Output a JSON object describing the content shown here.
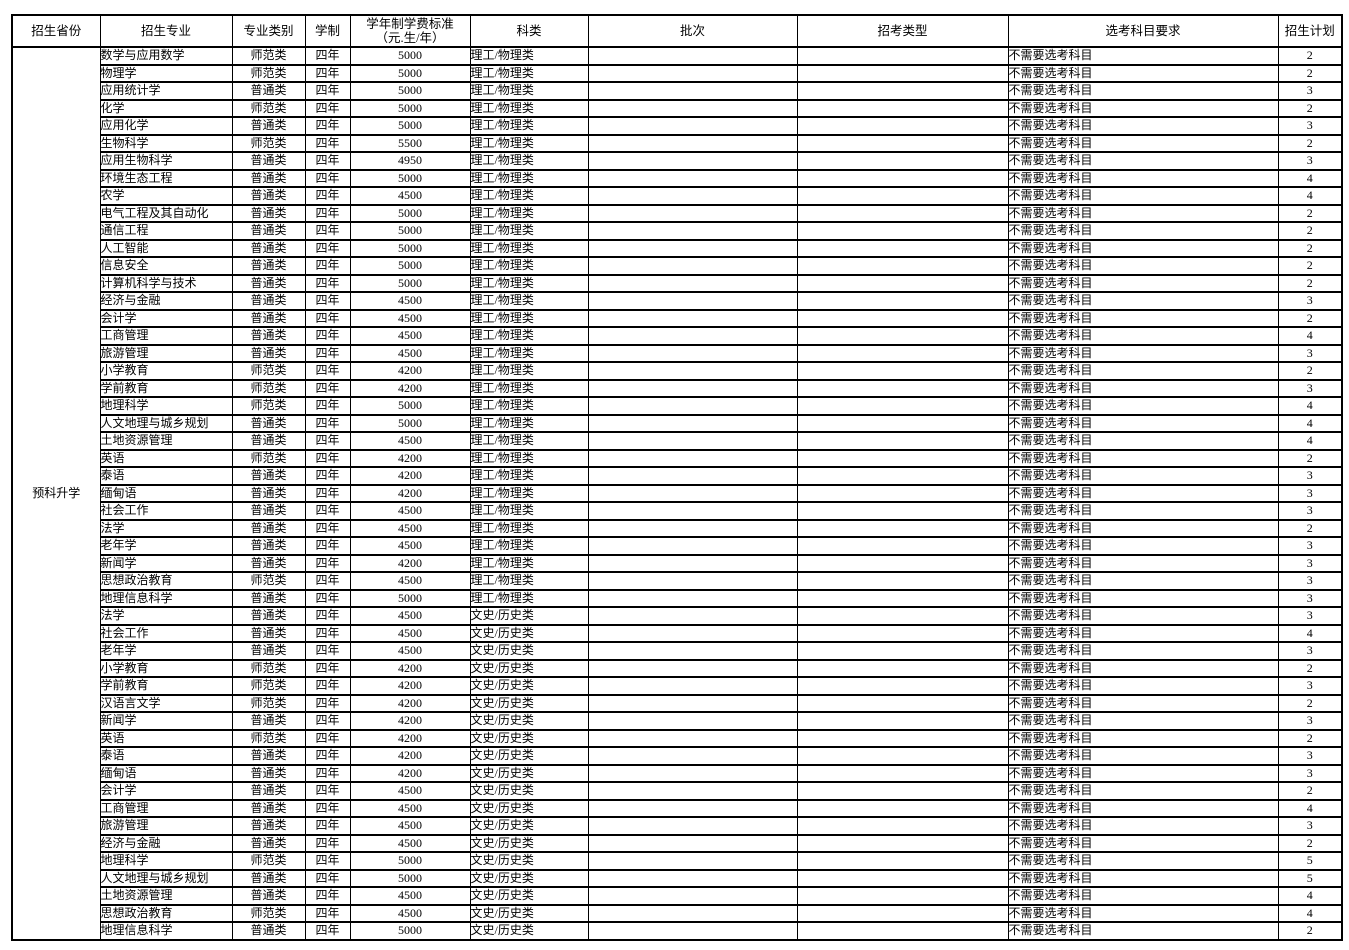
{
  "table": {
    "province_label": "预科升学",
    "headers": [
      "招生省份",
      "招生专业",
      "专业类别",
      "学制",
      "学年制学费标准\n（元.生/年）",
      "科类",
      "批次",
      "招考类型",
      "选考科目要求",
      "招生计划"
    ],
    "rows": [
      {
        "major": "数学与应用数学",
        "category": "师范类",
        "duration": "四年",
        "tuition": "5000",
        "subject": "理工/物理类",
        "batch": "",
        "exam_type": "",
        "subject_req": "不需要选考科目",
        "plan": "2"
      },
      {
        "major": "物理学",
        "category": "师范类",
        "duration": "四年",
        "tuition": "5000",
        "subject": "理工/物理类",
        "batch": "",
        "exam_type": "",
        "subject_req": "不需要选考科目",
        "plan": "2"
      },
      {
        "major": "应用统计学",
        "category": "普通类",
        "duration": "四年",
        "tuition": "5000",
        "subject": "理工/物理类",
        "batch": "",
        "exam_type": "",
        "subject_req": "不需要选考科目",
        "plan": "3"
      },
      {
        "major": "化学",
        "category": "师范类",
        "duration": "四年",
        "tuition": "5000",
        "subject": "理工/物理类",
        "batch": "",
        "exam_type": "",
        "subject_req": "不需要选考科目",
        "plan": "2"
      },
      {
        "major": "应用化学",
        "category": "普通类",
        "duration": "四年",
        "tuition": "5000",
        "subject": "理工/物理类",
        "batch": "",
        "exam_type": "",
        "subject_req": "不需要选考科目",
        "plan": "3"
      },
      {
        "major": "生物科学",
        "category": "师范类",
        "duration": "四年",
        "tuition": "5500",
        "subject": "理工/物理类",
        "batch": "",
        "exam_type": "",
        "subject_req": "不需要选考科目",
        "plan": "2"
      },
      {
        "major": "应用生物科学",
        "category": "普通类",
        "duration": "四年",
        "tuition": "4950",
        "subject": "理工/物理类",
        "batch": "",
        "exam_type": "",
        "subject_req": "不需要选考科目",
        "plan": "3"
      },
      {
        "major": "环境生态工程",
        "category": "普通类",
        "duration": "四年",
        "tuition": "5000",
        "subject": "理工/物理类",
        "batch": "",
        "exam_type": "",
        "subject_req": "不需要选考科目",
        "plan": "4"
      },
      {
        "major": "农学",
        "category": "普通类",
        "duration": "四年",
        "tuition": "4500",
        "subject": "理工/物理类",
        "batch": "",
        "exam_type": "",
        "subject_req": "不需要选考科目",
        "plan": "4"
      },
      {
        "major": "电气工程及其自动化",
        "category": "普通类",
        "duration": "四年",
        "tuition": "5000",
        "subject": "理工/物理类",
        "batch": "",
        "exam_type": "",
        "subject_req": "不需要选考科目",
        "plan": "2"
      },
      {
        "major": "通信工程",
        "category": "普通类",
        "duration": "四年",
        "tuition": "5000",
        "subject": "理工/物理类",
        "batch": "",
        "exam_type": "",
        "subject_req": "不需要选考科目",
        "plan": "2"
      },
      {
        "major": "人工智能",
        "category": "普通类",
        "duration": "四年",
        "tuition": "5000",
        "subject": "理工/物理类",
        "batch": "",
        "exam_type": "",
        "subject_req": "不需要选考科目",
        "plan": "2"
      },
      {
        "major": "信息安全",
        "category": "普通类",
        "duration": "四年",
        "tuition": "5000",
        "subject": "理工/物理类",
        "batch": "",
        "exam_type": "",
        "subject_req": "不需要选考科目",
        "plan": "2"
      },
      {
        "major": "计算机科学与技术",
        "category": "普通类",
        "duration": "四年",
        "tuition": "5000",
        "subject": "理工/物理类",
        "batch": "",
        "exam_type": "",
        "subject_req": "不需要选考科目",
        "plan": "2"
      },
      {
        "major": "经济与金融",
        "category": "普通类",
        "duration": "四年",
        "tuition": "4500",
        "subject": "理工/物理类",
        "batch": "",
        "exam_type": "",
        "subject_req": "不需要选考科目",
        "plan": "3"
      },
      {
        "major": "会计学",
        "category": "普通类",
        "duration": "四年",
        "tuition": "4500",
        "subject": "理工/物理类",
        "batch": "",
        "exam_type": "",
        "subject_req": "不需要选考科目",
        "plan": "2"
      },
      {
        "major": "工商管理",
        "category": "普通类",
        "duration": "四年",
        "tuition": "4500",
        "subject": "理工/物理类",
        "batch": "",
        "exam_type": "",
        "subject_req": "不需要选考科目",
        "plan": "4"
      },
      {
        "major": "旅游管理",
        "category": "普通类",
        "duration": "四年",
        "tuition": "4500",
        "subject": "理工/物理类",
        "batch": "",
        "exam_type": "",
        "subject_req": "不需要选考科目",
        "plan": "3"
      },
      {
        "major": "小学教育",
        "category": "师范类",
        "duration": "四年",
        "tuition": "4200",
        "subject": "理工/物理类",
        "batch": "",
        "exam_type": "",
        "subject_req": "不需要选考科目",
        "plan": "2"
      },
      {
        "major": "学前教育",
        "category": "师范类",
        "duration": "四年",
        "tuition": "4200",
        "subject": "理工/物理类",
        "batch": "",
        "exam_type": "",
        "subject_req": "不需要选考科目",
        "plan": "3"
      },
      {
        "major": "地理科学",
        "category": "师范类",
        "duration": "四年",
        "tuition": "5000",
        "subject": "理工/物理类",
        "batch": "",
        "exam_type": "",
        "subject_req": "不需要选考科目",
        "plan": "4"
      },
      {
        "major": "人文地理与城乡规划",
        "category": "普通类",
        "duration": "四年",
        "tuition": "5000",
        "subject": "理工/物理类",
        "batch": "",
        "exam_type": "",
        "subject_req": "不需要选考科目",
        "plan": "4"
      },
      {
        "major": "土地资源管理",
        "category": "普通类",
        "duration": "四年",
        "tuition": "4500",
        "subject": "理工/物理类",
        "batch": "",
        "exam_type": "",
        "subject_req": "不需要选考科目",
        "plan": "4"
      },
      {
        "major": "英语",
        "category": "师范类",
        "duration": "四年",
        "tuition": "4200",
        "subject": "理工/物理类",
        "batch": "",
        "exam_type": "",
        "subject_req": "不需要选考科目",
        "plan": "2"
      },
      {
        "major": "泰语",
        "category": "普通类",
        "duration": "四年",
        "tuition": "4200",
        "subject": "理工/物理类",
        "batch": "",
        "exam_type": "",
        "subject_req": "不需要选考科目",
        "plan": "3"
      },
      {
        "major": "缅甸语",
        "category": "普通类",
        "duration": "四年",
        "tuition": "4200",
        "subject": "理工/物理类",
        "batch": "",
        "exam_type": "",
        "subject_req": "不需要选考科目",
        "plan": "3"
      },
      {
        "major": "社会工作",
        "category": "普通类",
        "duration": "四年",
        "tuition": "4500",
        "subject": "理工/物理类",
        "batch": "",
        "exam_type": "",
        "subject_req": "不需要选考科目",
        "plan": "3"
      },
      {
        "major": "法学",
        "category": "普通类",
        "duration": "四年",
        "tuition": "4500",
        "subject": "理工/物理类",
        "batch": "",
        "exam_type": "",
        "subject_req": "不需要选考科目",
        "plan": "2"
      },
      {
        "major": "老年学",
        "category": "普通类",
        "duration": "四年",
        "tuition": "4500",
        "subject": "理工/物理类",
        "batch": "",
        "exam_type": "",
        "subject_req": "不需要选考科目",
        "plan": "3"
      },
      {
        "major": "新闻学",
        "category": "普通类",
        "duration": "四年",
        "tuition": "4200",
        "subject": "理工/物理类",
        "batch": "",
        "exam_type": "",
        "subject_req": "不需要选考科目",
        "plan": "3"
      },
      {
        "major": "思想政治教育",
        "category": "师范类",
        "duration": "四年",
        "tuition": "4500",
        "subject": "理工/物理类",
        "batch": "",
        "exam_type": "",
        "subject_req": "不需要选考科目",
        "plan": "3"
      },
      {
        "major": "地理信息科学",
        "category": "普通类",
        "duration": "四年",
        "tuition": "5000",
        "subject": "理工/物理类",
        "batch": "",
        "exam_type": "",
        "subject_req": "不需要选考科目",
        "plan": "3"
      },
      {
        "major": "法学",
        "category": "普通类",
        "duration": "四年",
        "tuition": "4500",
        "subject": "文史/历史类",
        "batch": "",
        "exam_type": "",
        "subject_req": "不需要选考科目",
        "plan": "3"
      },
      {
        "major": "社会工作",
        "category": "普通类",
        "duration": "四年",
        "tuition": "4500",
        "subject": "文史/历史类",
        "batch": "",
        "exam_type": "",
        "subject_req": "不需要选考科目",
        "plan": "4"
      },
      {
        "major": "老年学",
        "category": "普通类",
        "duration": "四年",
        "tuition": "4500",
        "subject": "文史/历史类",
        "batch": "",
        "exam_type": "",
        "subject_req": "不需要选考科目",
        "plan": "3"
      },
      {
        "major": "小学教育",
        "category": "师范类",
        "duration": "四年",
        "tuition": "4200",
        "subject": "文史/历史类",
        "batch": "",
        "exam_type": "",
        "subject_req": "不需要选考科目",
        "plan": "2"
      },
      {
        "major": "学前教育",
        "category": "师范类",
        "duration": "四年",
        "tuition": "4200",
        "subject": "文史/历史类",
        "batch": "",
        "exam_type": "",
        "subject_req": "不需要选考科目",
        "plan": "3"
      },
      {
        "major": "汉语言文学",
        "category": "师范类",
        "duration": "四年",
        "tuition": "4200",
        "subject": "文史/历史类",
        "batch": "",
        "exam_type": "",
        "subject_req": "不需要选考科目",
        "plan": "2"
      },
      {
        "major": "新闻学",
        "category": "普通类",
        "duration": "四年",
        "tuition": "4200",
        "subject": "文史/历史类",
        "batch": "",
        "exam_type": "",
        "subject_req": "不需要选考科目",
        "plan": "3"
      },
      {
        "major": "英语",
        "category": "师范类",
        "duration": "四年",
        "tuition": "4200",
        "subject": "文史/历史类",
        "batch": "",
        "exam_type": "",
        "subject_req": "不需要选考科目",
        "plan": "2"
      },
      {
        "major": "泰语",
        "category": "普通类",
        "duration": "四年",
        "tuition": "4200",
        "subject": "文史/历史类",
        "batch": "",
        "exam_type": "",
        "subject_req": "不需要选考科目",
        "plan": "3"
      },
      {
        "major": "缅甸语",
        "category": "普通类",
        "duration": "四年",
        "tuition": "4200",
        "subject": "文史/历史类",
        "batch": "",
        "exam_type": "",
        "subject_req": "不需要选考科目",
        "plan": "3"
      },
      {
        "major": "会计学",
        "category": "普通类",
        "duration": "四年",
        "tuition": "4500",
        "subject": "文史/历史类",
        "batch": "",
        "exam_type": "",
        "subject_req": "不需要选考科目",
        "plan": "2"
      },
      {
        "major": "工商管理",
        "category": "普通类",
        "duration": "四年",
        "tuition": "4500",
        "subject": "文史/历史类",
        "batch": "",
        "exam_type": "",
        "subject_req": "不需要选考科目",
        "plan": "4"
      },
      {
        "major": "旅游管理",
        "category": "普通类",
        "duration": "四年",
        "tuition": "4500",
        "subject": "文史/历史类",
        "batch": "",
        "exam_type": "",
        "subject_req": "不需要选考科目",
        "plan": "3"
      },
      {
        "major": "经济与金融",
        "category": "普通类",
        "duration": "四年",
        "tuition": "4500",
        "subject": "文史/历史类",
        "batch": "",
        "exam_type": "",
        "subject_req": "不需要选考科目",
        "plan": "2"
      },
      {
        "major": "地理科学",
        "category": "师范类",
        "duration": "四年",
        "tuition": "5000",
        "subject": "文史/历史类",
        "batch": "",
        "exam_type": "",
        "subject_req": "不需要选考科目",
        "plan": "5"
      },
      {
        "major": "人文地理与城乡规划",
        "category": "普通类",
        "duration": "四年",
        "tuition": "5000",
        "subject": "文史/历史类",
        "batch": "",
        "exam_type": "",
        "subject_req": "不需要选考科目",
        "plan": "5"
      },
      {
        "major": "土地资源管理",
        "category": "普通类",
        "duration": "四年",
        "tuition": "4500",
        "subject": "文史/历史类",
        "batch": "",
        "exam_type": "",
        "subject_req": "不需要选考科目",
        "plan": "4"
      },
      {
        "major": "思想政治教育",
        "category": "师范类",
        "duration": "四年",
        "tuition": "4500",
        "subject": "文史/历史类",
        "batch": "",
        "exam_type": "",
        "subject_req": "不需要选考科目",
        "plan": "4"
      },
      {
        "major": "地理信息科学",
        "category": "普通类",
        "duration": "四年",
        "tuition": "5000",
        "subject": "文史/历史类",
        "batch": "",
        "exam_type": "",
        "subject_req": "不需要选考科目",
        "plan": "2"
      }
    ]
  }
}
